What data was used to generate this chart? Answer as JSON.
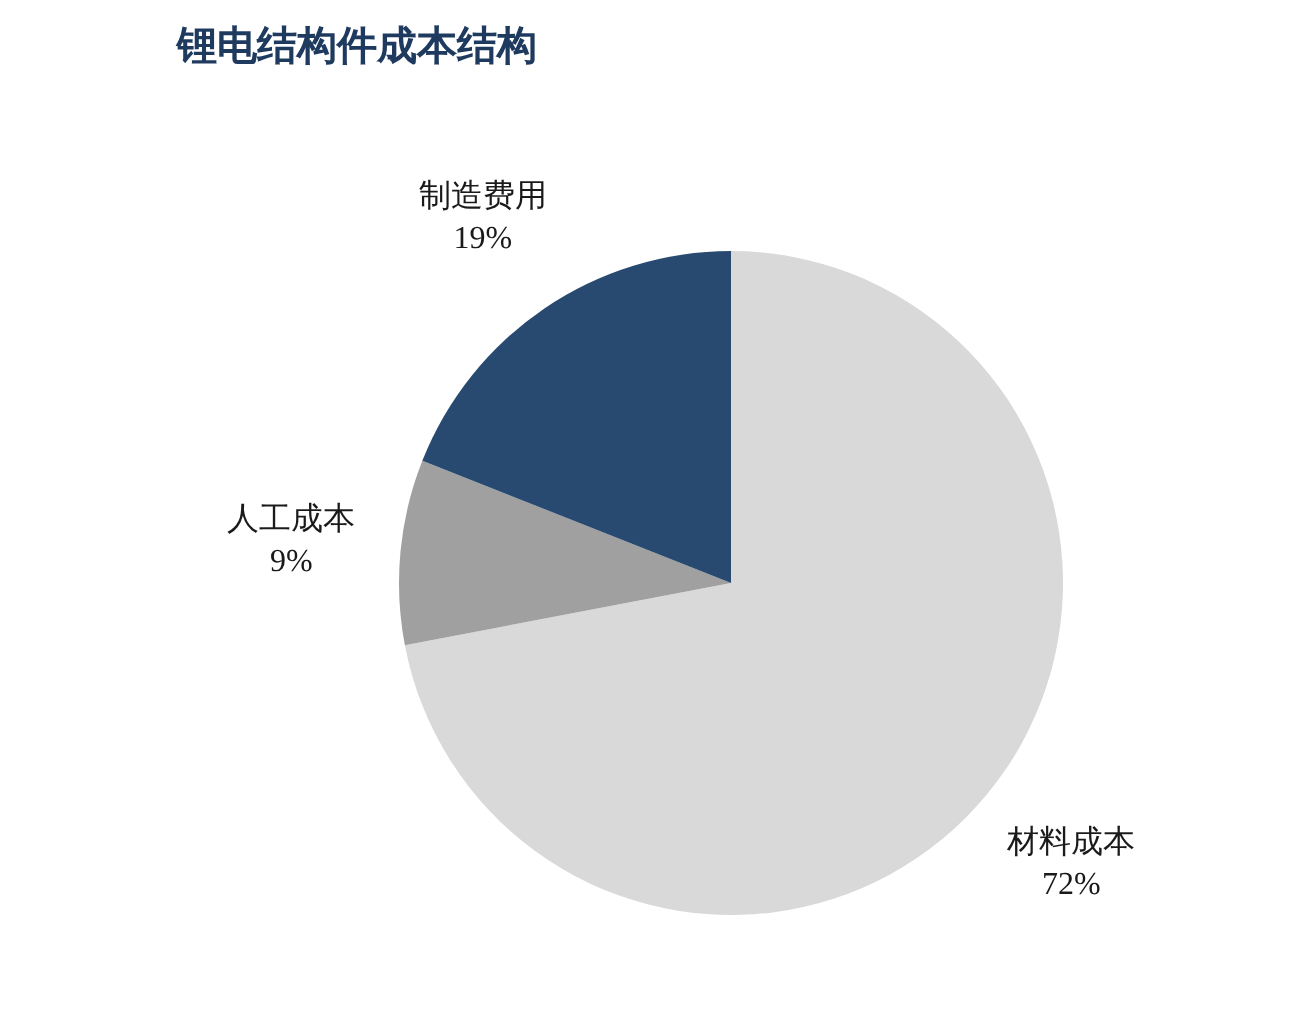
{
  "chart_data": {
    "type": "pie",
    "title": "锂电结构件成本结构",
    "categories": [
      "材料成本",
      "人工成本",
      "制造费用"
    ],
    "values": [
      72,
      9,
      19
    ],
    "colors": [
      "#d9d9d9",
      "#a0a0a0",
      "#294a70"
    ],
    "value_labels": [
      "72%",
      "9%",
      "19%"
    ]
  }
}
